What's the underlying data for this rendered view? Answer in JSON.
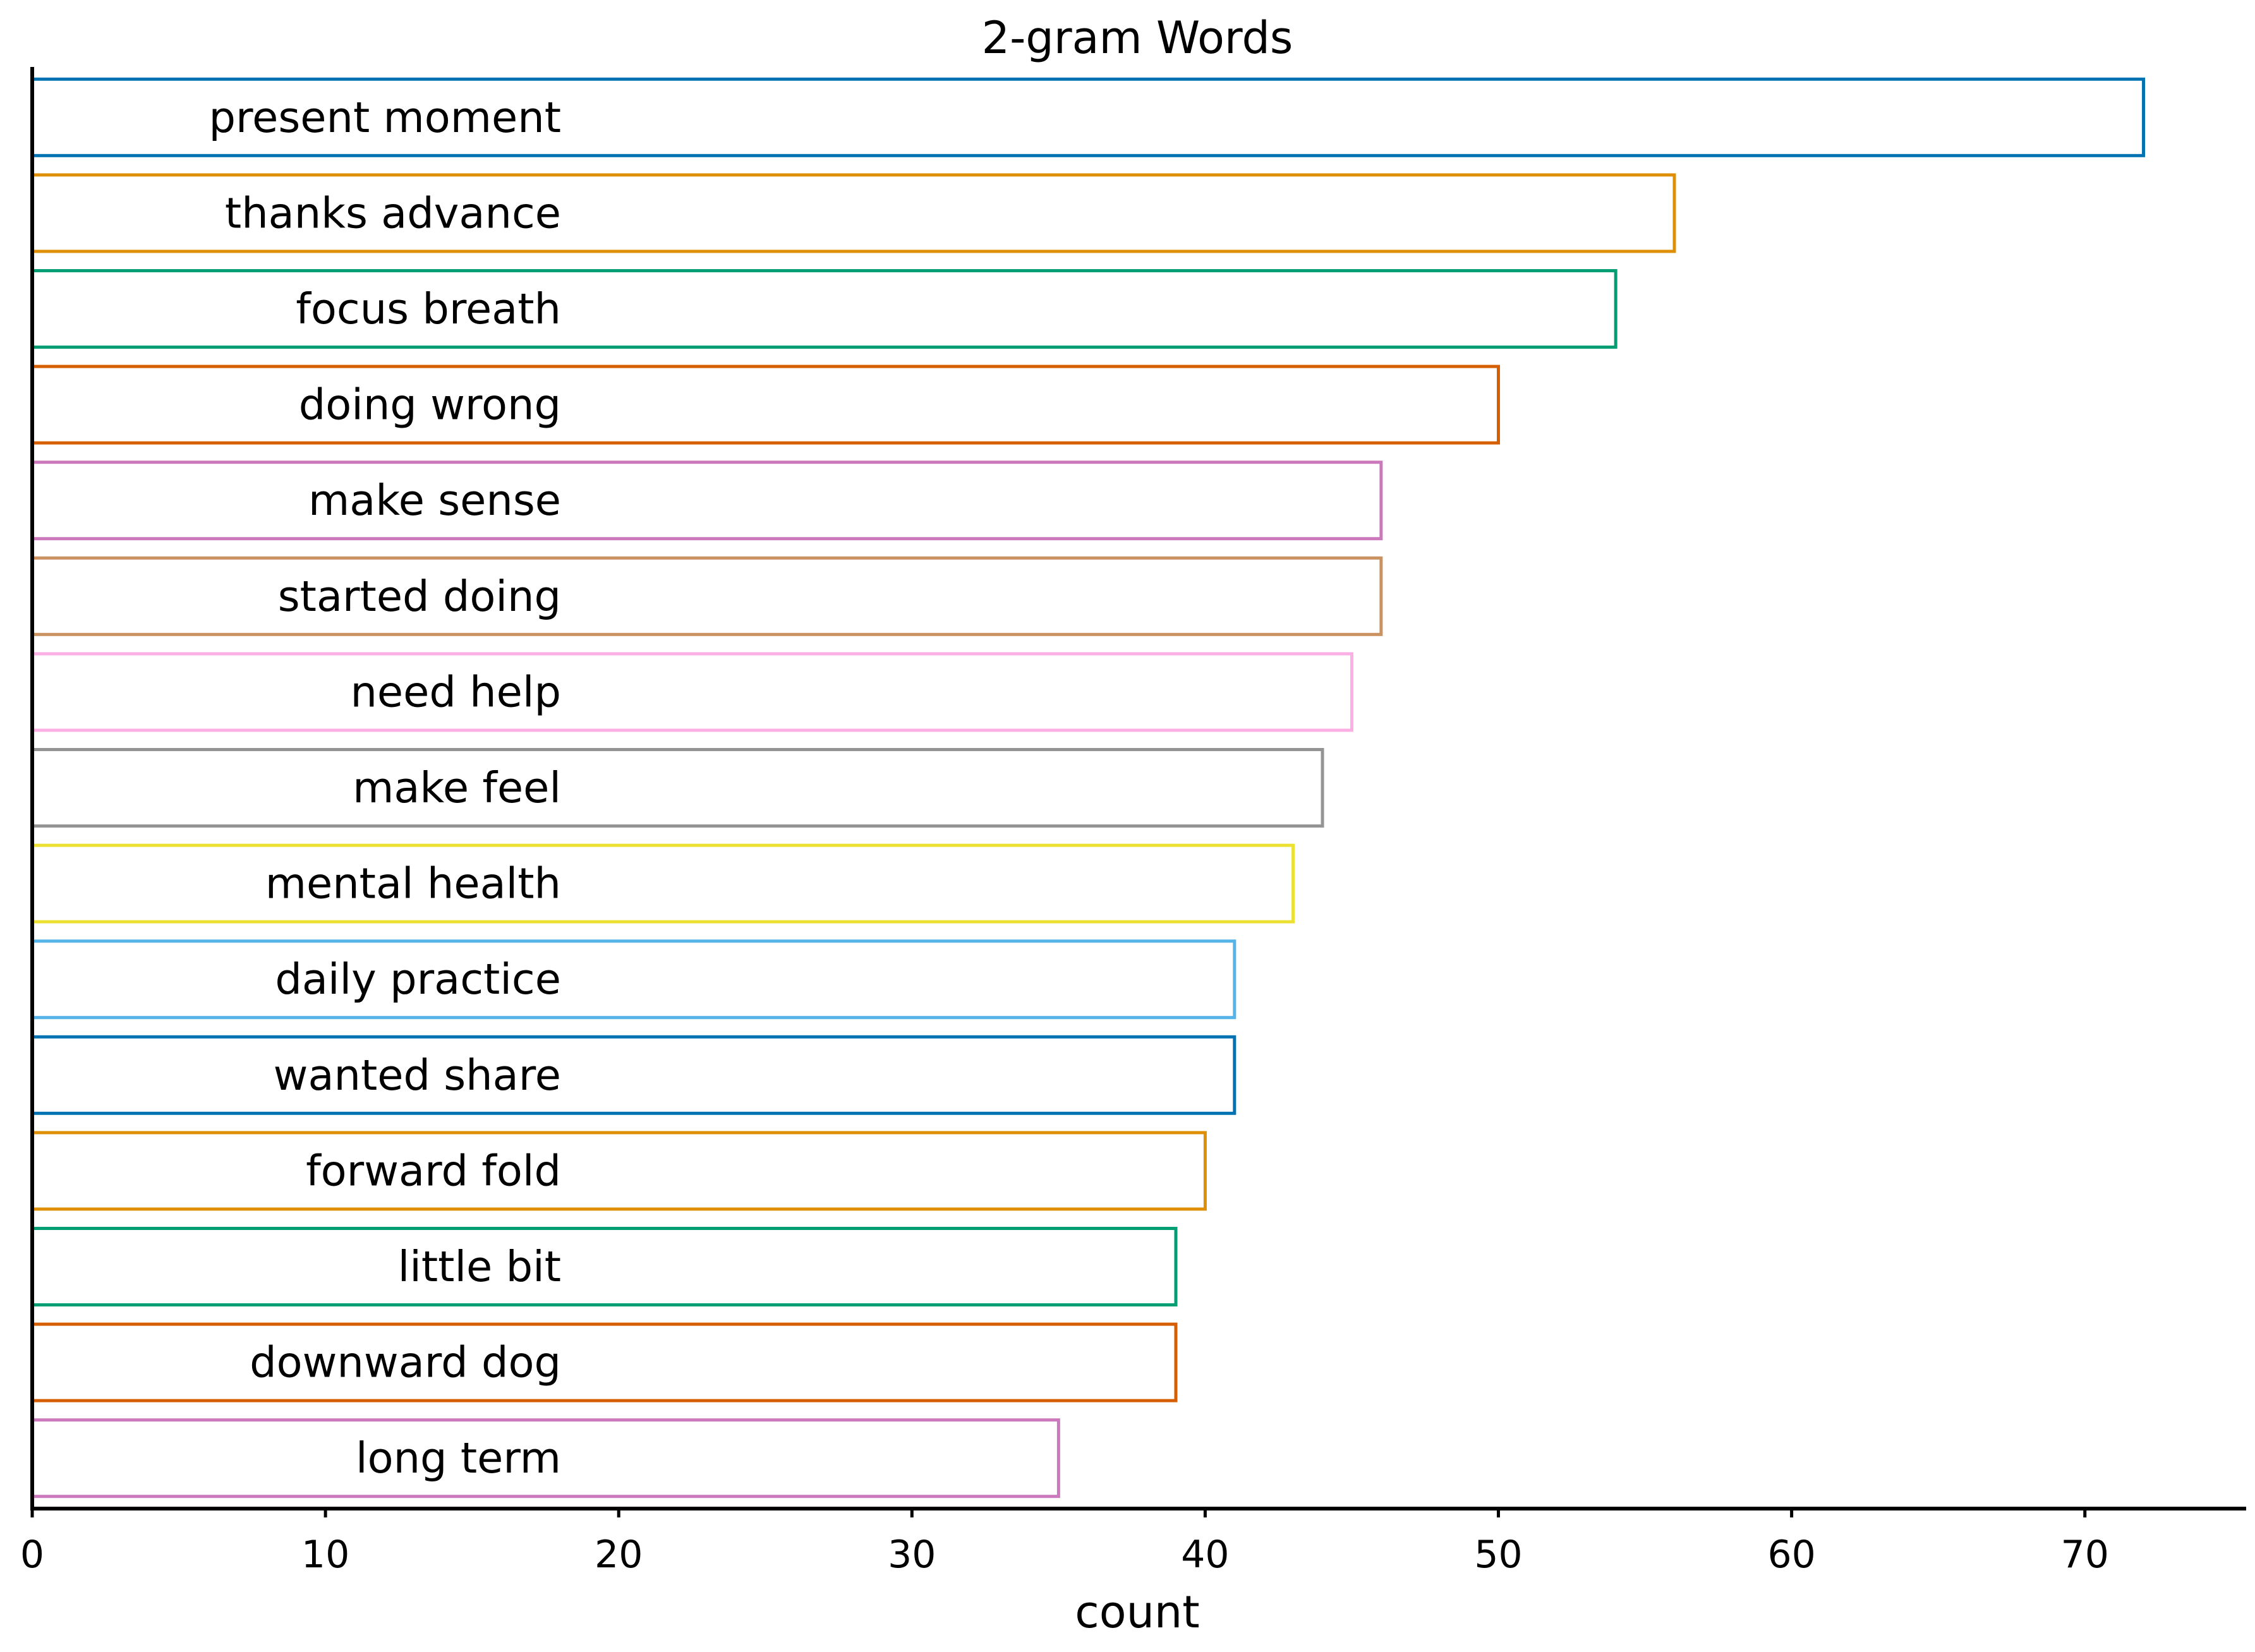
{
  "chart_data": {
    "type": "bar",
    "orientation": "horizontal",
    "title": "2-gram Words",
    "xlabel": "count",
    "ylabel": "",
    "xlim": [
      0,
      75.5
    ],
    "xticks": [
      0,
      10,
      20,
      30,
      40,
      50,
      60,
      70
    ],
    "grid": false,
    "bar_fill": "none",
    "categories": [
      "present moment",
      "thanks advance",
      "focus breath",
      "doing wrong",
      "make sense",
      "started doing",
      "need help",
      "make feel",
      "mental health",
      "daily practice",
      "wanted share",
      "forward fold",
      "little bit",
      "downward dog",
      "long term"
    ],
    "values": [
      72,
      56,
      54,
      50,
      46,
      46,
      45,
      44,
      43,
      41,
      41,
      40,
      39,
      39,
      35
    ],
    "colors": [
      "#0072b2",
      "#de8f05",
      "#029e73",
      "#d55e00",
      "#cc78bc",
      "#ca9161",
      "#fbafe4",
      "#949494",
      "#ece133",
      "#56b4e9",
      "#0072b2",
      "#de8f05",
      "#029e73",
      "#d55e00",
      "#cc78bc"
    ]
  }
}
